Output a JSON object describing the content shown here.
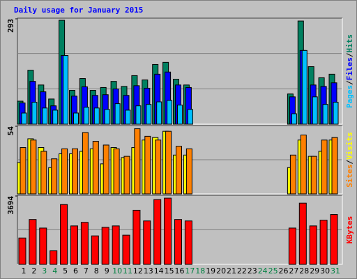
{
  "chart_data": [
    {
      "type": "bar",
      "title": "Daily usage for January 2015",
      "categories": [
        "1",
        "2",
        "3",
        "4",
        "5",
        "6",
        "7",
        "8",
        "9",
        "10",
        "11",
        "12",
        "13",
        "14",
        "15",
        "16",
        "17",
        "18",
        "19",
        "20",
        "21",
        "22",
        "23",
        "24",
        "25",
        "26",
        "27",
        "28",
        "29",
        "30",
        "31"
      ],
      "category_colors": [
        "#000000",
        "#000000",
        "#008040",
        "#008040",
        "#000000",
        "#000000",
        "#000000",
        "#000000",
        "#000000",
        "#008040",
        "#008040",
        "#000000",
        "#000000",
        "#000000",
        "#000000",
        "#000000",
        "#008040",
        "#008040",
        "#000000",
        "#000000",
        "#000000",
        "#000000",
        "#000000",
        "#008040",
        "#008040",
        "#000000",
        "#000000",
        "#000000",
        "#000000",
        "#000000",
        "#008040"
      ],
      "ylim": [
        0,
        293
      ],
      "yticks": [
        293
      ],
      "series": [
        {
          "name": "Hits",
          "color": "#008060",
          "values": [
            64,
            150,
            109,
            70,
            289,
            94,
            127,
            94,
            102,
            119,
            105,
            135,
            123,
            166,
            172,
            125,
            109,
            0,
            0,
            0,
            0,
            0,
            0,
            0,
            0,
            0,
            84,
            287,
            160,
            129,
            139
          ]
        },
        {
          "name": "Files",
          "color": "#0000ff",
          "values": [
            59,
            119,
            90,
            51,
            191,
            78,
            104,
            80,
            82,
            98,
            80,
            107,
            100,
            139,
            145,
            109,
            102,
            0,
            0,
            0,
            0,
            0,
            0,
            0,
            0,
            0,
            76,
            205,
            109,
            105,
            115
          ]
        },
        {
          "name": "Pages",
          "color": "#00c0ff",
          "values": [
            31,
            61,
            45,
            39,
            191,
            31,
            47,
            45,
            41,
            57,
            39,
            51,
            55,
            62,
            66,
            53,
            41,
            0,
            0,
            0,
            0,
            0,
            0,
            0,
            0,
            0,
            29,
            205,
            76,
            55,
            61
          ]
        }
      ]
    },
    {
      "type": "bar",
      "ylim": [
        0,
        54
      ],
      "yticks": [
        54
      ],
      "series": [
        {
          "name": "Visits",
          "color": "#ffff00",
          "values": [
            25,
            44,
            37,
            21,
            32,
            32,
            34,
            36,
            24,
            37,
            29,
            37,
            43,
            45,
            50,
            31,
            31,
            0,
            0,
            0,
            0,
            0,
            0,
            0,
            0,
            0,
            21,
            43,
            30,
            34,
            43
          ]
        },
        {
          "name": "Sites",
          "color": "#ff8000",
          "values": [
            37,
            43,
            34,
            28,
            36,
            36,
            49,
            42,
            39,
            36,
            30,
            52,
            46,
            43,
            50,
            38,
            36,
            0,
            0,
            0,
            0,
            0,
            0,
            0,
            0,
            0,
            31,
            47,
            30,
            43,
            45
          ]
        }
      ]
    },
    {
      "type": "bar",
      "ylim": [
        0,
        3694
      ],
      "yticks": [
        3694
      ],
      "series": [
        {
          "name": "KBytes",
          "color": "#ff0000",
          "values": [
            1424,
            2424,
            1962,
            731,
            3232,
            2078,
            2270,
            1539,
            2001,
            2078,
            1578,
            2924,
            2347,
            3501,
            3578,
            2424,
            2347,
            0,
            0,
            0,
            0,
            0,
            0,
            0,
            0,
            0,
            1962,
            3309,
            2078,
            2385,
            2693
          ]
        }
      ]
    }
  ]
}
